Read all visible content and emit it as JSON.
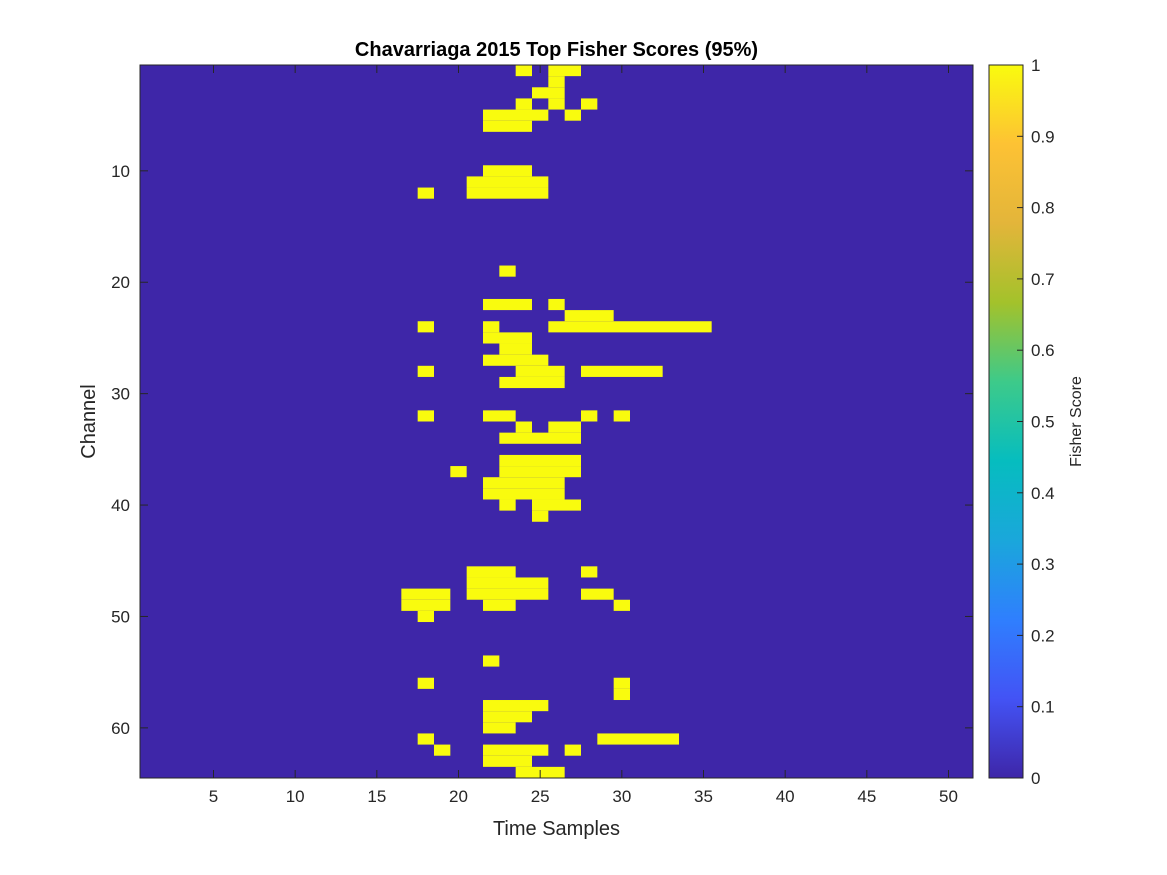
{
  "chart_data": {
    "type": "heatmap",
    "title": "Chavarriaga 2015 Top Fisher Scores (95%)",
    "xlabel": "Time Samples",
    "ylabel": "Channel",
    "xlim": [
      0.5,
      51.5
    ],
    "ylim": [
      0.5,
      64.5
    ],
    "x_ticks": [
      5,
      10,
      15,
      20,
      25,
      30,
      35,
      40,
      45,
      50
    ],
    "y_ticks": [
      10,
      20,
      30,
      40,
      50,
      60
    ],
    "n_channels": 64,
    "n_samples": 51,
    "background_value": 0,
    "colorbar": {
      "label": "Fisher Score",
      "range": [
        0,
        1
      ],
      "ticks": [
        0,
        0.1,
        0.2,
        0.3,
        0.4,
        0.5,
        0.6,
        0.7,
        0.8,
        0.9,
        1
      ]
    },
    "colormap": [
      "#3e26a8",
      "#4353f5",
      "#2f7ffe",
      "#1aa7db",
      "#06bdbf",
      "#3dca8a",
      "#a3c22b",
      "#e3b53a",
      "#fdc234",
      "#f9fb0e"
    ],
    "low_color": "#3e26a8",
    "high_color": "#f9fb0e",
    "value_one_cells": [
      {
        "channel": 1,
        "samples": [
          [
            24,
            24
          ],
          [
            26,
            27
          ]
        ]
      },
      {
        "channel": 2,
        "samples": [
          [
            26,
            26
          ]
        ]
      },
      {
        "channel": 3,
        "samples": [
          [
            25,
            26
          ]
        ]
      },
      {
        "channel": 4,
        "samples": [
          [
            24,
            24
          ],
          [
            26,
            26
          ],
          [
            28,
            28
          ]
        ]
      },
      {
        "channel": 5,
        "samples": [
          [
            22,
            25
          ],
          [
            27,
            27
          ]
        ]
      },
      {
        "channel": 6,
        "samples": [
          [
            22,
            24
          ]
        ]
      },
      {
        "channel": 10,
        "samples": [
          [
            22,
            24
          ]
        ]
      },
      {
        "channel": 11,
        "samples": [
          [
            21,
            25
          ]
        ]
      },
      {
        "channel": 12,
        "samples": [
          [
            18,
            18
          ],
          [
            21,
            25
          ]
        ]
      },
      {
        "channel": 19,
        "samples": [
          [
            23,
            23
          ]
        ]
      },
      {
        "channel": 22,
        "samples": [
          [
            22,
            24
          ],
          [
            26,
            26
          ]
        ]
      },
      {
        "channel": 23,
        "samples": [
          [
            27,
            29
          ]
        ]
      },
      {
        "channel": 24,
        "samples": [
          [
            18,
            18
          ],
          [
            22,
            22
          ],
          [
            26,
            35
          ]
        ]
      },
      {
        "channel": 25,
        "samples": [
          [
            22,
            24
          ]
        ]
      },
      {
        "channel": 26,
        "samples": [
          [
            23,
            24
          ]
        ]
      },
      {
        "channel": 27,
        "samples": [
          [
            22,
            24
          ],
          [
            25,
            25
          ]
        ]
      },
      {
        "channel": 28,
        "samples": [
          [
            18,
            18
          ],
          [
            24,
            26
          ],
          [
            28,
            32
          ]
        ]
      },
      {
        "channel": 29,
        "samples": [
          [
            23,
            26
          ]
        ]
      },
      {
        "channel": 32,
        "samples": [
          [
            18,
            18
          ],
          [
            22,
            23
          ],
          [
            28,
            28
          ],
          [
            30,
            30
          ]
        ]
      },
      {
        "channel": 33,
        "samples": [
          [
            24,
            24
          ],
          [
            26,
            27
          ]
        ]
      },
      {
        "channel": 34,
        "samples": [
          [
            23,
            27
          ]
        ]
      },
      {
        "channel": 36,
        "samples": [
          [
            23,
            27
          ]
        ]
      },
      {
        "channel": 37,
        "samples": [
          [
            20,
            20
          ],
          [
            23,
            27
          ]
        ]
      },
      {
        "channel": 38,
        "samples": [
          [
            22,
            26
          ]
        ]
      },
      {
        "channel": 39,
        "samples": [
          [
            22,
            26
          ]
        ]
      },
      {
        "channel": 40,
        "samples": [
          [
            23,
            23
          ],
          [
            25,
            27
          ]
        ]
      },
      {
        "channel": 41,
        "samples": [
          [
            25,
            25
          ]
        ]
      },
      {
        "channel": 46,
        "samples": [
          [
            21,
            23
          ],
          [
            28,
            28
          ]
        ]
      },
      {
        "channel": 47,
        "samples": [
          [
            21,
            25
          ]
        ]
      },
      {
        "channel": 48,
        "samples": [
          [
            17,
            19
          ],
          [
            21,
            25
          ],
          [
            28,
            29
          ]
        ]
      },
      {
        "channel": 49,
        "samples": [
          [
            17,
            19
          ],
          [
            22,
            23
          ],
          [
            30,
            30
          ]
        ]
      },
      {
        "channel": 50,
        "samples": [
          [
            18,
            18
          ]
        ]
      },
      {
        "channel": 54,
        "samples": [
          [
            22,
            22
          ]
        ]
      },
      {
        "channel": 56,
        "samples": [
          [
            18,
            18
          ],
          [
            30,
            30
          ]
        ]
      },
      {
        "channel": 57,
        "samples": [
          [
            30,
            30
          ]
        ]
      },
      {
        "channel": 58,
        "samples": [
          [
            22,
            25
          ]
        ]
      },
      {
        "channel": 59,
        "samples": [
          [
            22,
            24
          ]
        ]
      },
      {
        "channel": 60,
        "samples": [
          [
            22,
            23
          ]
        ]
      },
      {
        "channel": 61,
        "samples": [
          [
            18,
            18
          ],
          [
            29,
            33
          ]
        ]
      },
      {
        "channel": 62,
        "samples": [
          [
            19,
            19
          ],
          [
            22,
            25
          ],
          [
            27,
            27
          ]
        ]
      },
      {
        "channel": 63,
        "samples": [
          [
            22,
            24
          ]
        ]
      },
      {
        "channel": 64,
        "samples": [
          [
            24,
            26
          ]
        ]
      }
    ]
  }
}
